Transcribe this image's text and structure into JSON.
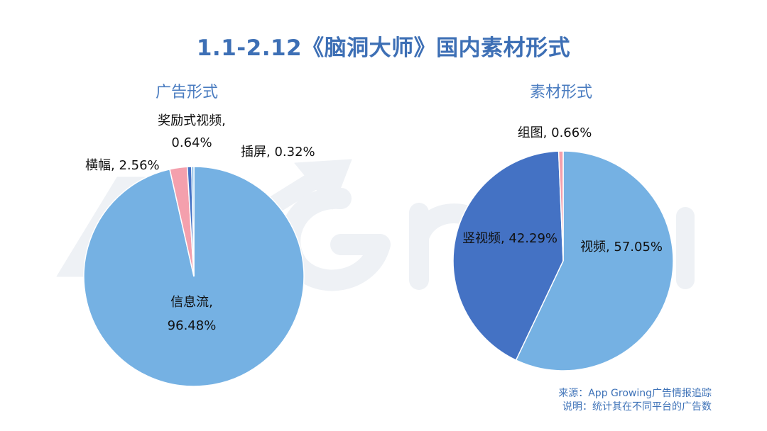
{
  "page": {
    "title": "1.1-2.12《脑洞大师》国内素材形式",
    "source_line": "来源：App Growing广告情报追踪",
    "note_line": "说明：统计其在不同平台的广告数",
    "watermark_text": "App Growing"
  },
  "colors": {
    "title": "#3d6fb5",
    "light_blue": "#75b1e3",
    "dark_blue": "#4472c4",
    "pink": "#f4a0ad",
    "watermark": "#eef1f5"
  },
  "chart_data": [
    {
      "type": "pie",
      "title": "广告形式",
      "slices": [
        {
          "name": "信息流",
          "value": 96.48,
          "label_lines": [
            "信息流,",
            "96.48%"
          ],
          "color": "#75b1e3"
        },
        {
          "name": "横幅",
          "value": 2.56,
          "label_lines": [
            "横幅, 2.56%"
          ],
          "color": "#f4a0ad"
        },
        {
          "name": "奖励式视频",
          "value": 0.64,
          "label_lines": [
            "奖励式视频,",
            "0.64%"
          ],
          "color": "#4472c4"
        },
        {
          "name": "插屏",
          "value": 0.32,
          "label_lines": [
            "插屏, 0.32%"
          ],
          "color": "#75b1e3"
        }
      ]
    },
    {
      "type": "pie",
      "title": "素材形式",
      "slices": [
        {
          "name": "视频",
          "value": 57.05,
          "label_lines": [
            "视频, 57.05%"
          ],
          "color": "#75b1e3"
        },
        {
          "name": "竖视频",
          "value": 42.29,
          "label_lines": [
            "竖视频, 42.29%"
          ],
          "color": "#4472c4"
        },
        {
          "name": "组图",
          "value": 0.66,
          "label_lines": [
            "组图, 0.66%"
          ],
          "color": "#f4a0ad"
        }
      ]
    }
  ]
}
